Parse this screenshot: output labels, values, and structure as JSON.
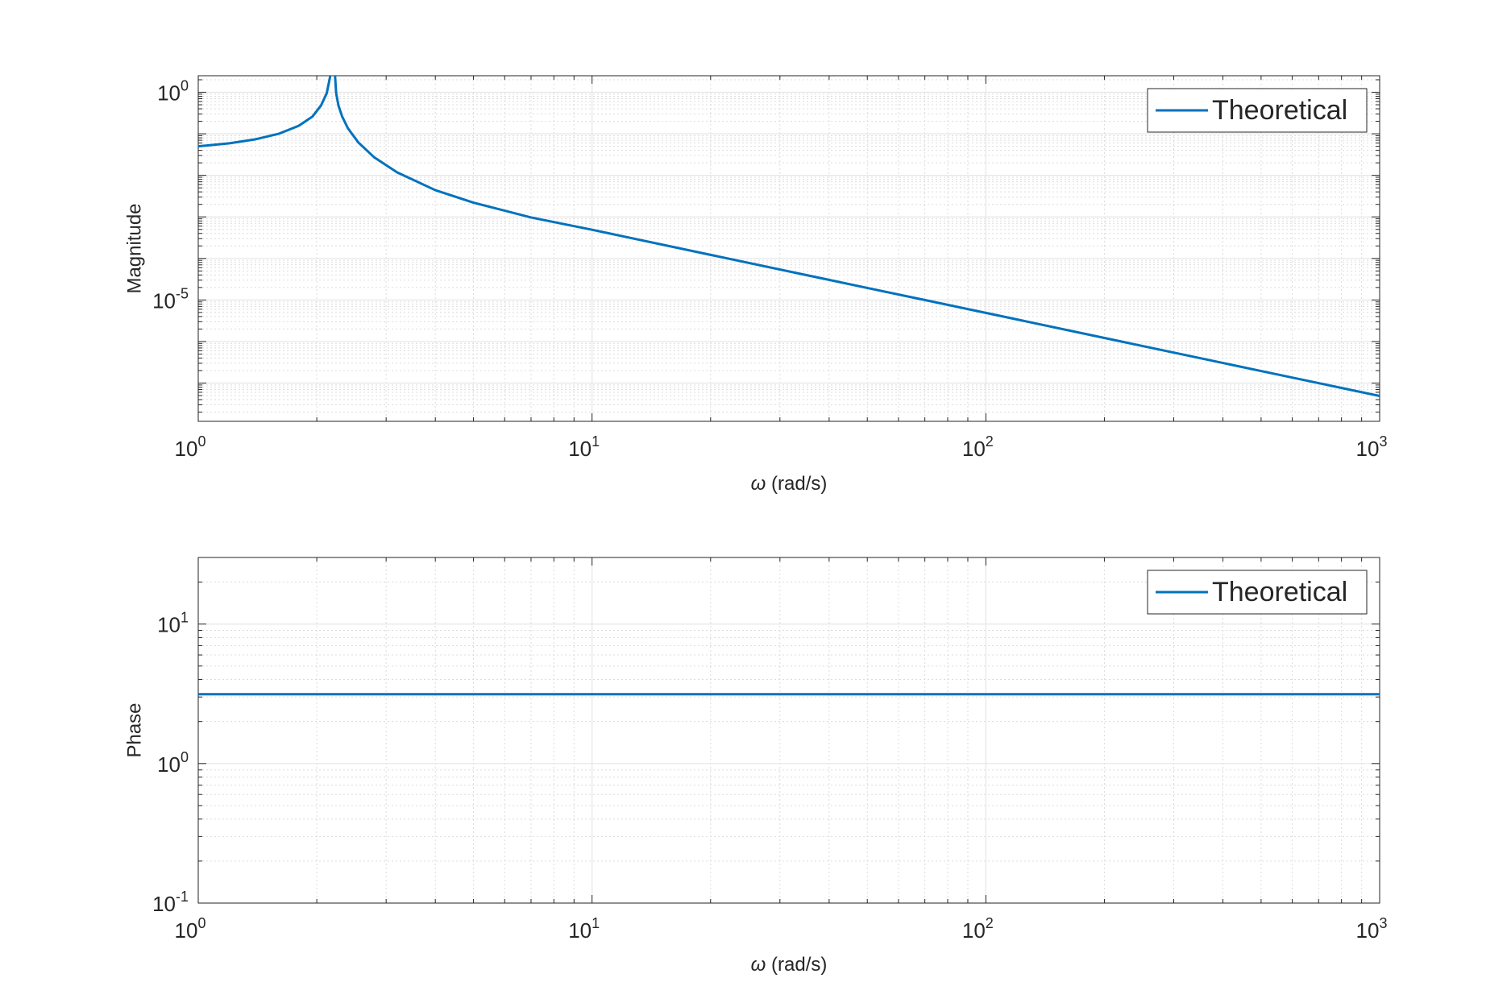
{
  "chart_data": [
    {
      "type": "line",
      "xscale": "log",
      "yscale": "log",
      "xlim": [
        1,
        1000
      ],
      "ylim": [
        1.2e-08,
        2.5
      ],
      "grid": true,
      "minor_grid": true,
      "xlabel": "ω (rad/s)",
      "ylabel": "Magnitude",
      "xticks": [
        {
          "base": "10",
          "exp": "0",
          "value": 1
        },
        {
          "base": "10",
          "exp": "1",
          "value": 10
        },
        {
          "base": "10",
          "exp": "2",
          "value": 100
        },
        {
          "base": "10",
          "exp": "3",
          "value": 1000
        }
      ],
      "yticks": [
        {
          "base": "10",
          "exp": "0",
          "value": 1
        },
        {
          "base": "10",
          "exp": "-5",
          "value": 1e-05
        }
      ],
      "legend": {
        "position": "top-right",
        "entries": [
          "Theoretical"
        ]
      },
      "series": [
        {
          "name": "Theoretical",
          "color": "#0072BD",
          "x": [
            1,
            1.2,
            1.4,
            1.6,
            1.8,
            1.95,
            2.05,
            2.12,
            2.18,
            2.2,
            2.22,
            2.24,
            2.27,
            2.32,
            2.4,
            2.55,
            2.8,
            3.2,
            4,
            5,
            7,
            10,
            20,
            50,
            100,
            200,
            500,
            1000
          ],
          "y": [
            0.05,
            0.059,
            0.074,
            0.1,
            0.156,
            0.26,
            0.48,
            0.95,
            3.5,
            25,
            3.5,
            0.95,
            0.48,
            0.26,
            0.135,
            0.062,
            0.027,
            0.0118,
            0.0044,
            0.0022,
            0.00097,
            0.00049,
            0.000122,
            1.95e-05,
            4.9e-06,
            1.22e-06,
            1.95e-07,
            4.9e-08
          ]
        }
      ]
    },
    {
      "type": "line",
      "xscale": "log",
      "yscale": "log",
      "xlim": [
        1,
        1000
      ],
      "ylim": [
        0.1,
        30
      ],
      "grid": true,
      "minor_grid": true,
      "xlabel": "ω (rad/s)",
      "ylabel": "Phase",
      "xticks": [
        {
          "base": "10",
          "exp": "0",
          "value": 1
        },
        {
          "base": "10",
          "exp": "1",
          "value": 10
        },
        {
          "base": "10",
          "exp": "2",
          "value": 100
        },
        {
          "base": "10",
          "exp": "3",
          "value": 1000
        }
      ],
      "yticks": [
        {
          "base": "10",
          "exp": "1",
          "value": 10
        },
        {
          "base": "10",
          "exp": "0",
          "value": 1
        },
        {
          "base": "10",
          "exp": "-1",
          "value": 0.1
        }
      ],
      "legend": {
        "position": "top-right",
        "entries": [
          "Theoretical"
        ]
      },
      "series": [
        {
          "name": "Theoretical",
          "color": "#0072BD",
          "x": [
            1,
            1000
          ],
          "y": [
            3.14159,
            3.14159
          ]
        }
      ]
    }
  ]
}
